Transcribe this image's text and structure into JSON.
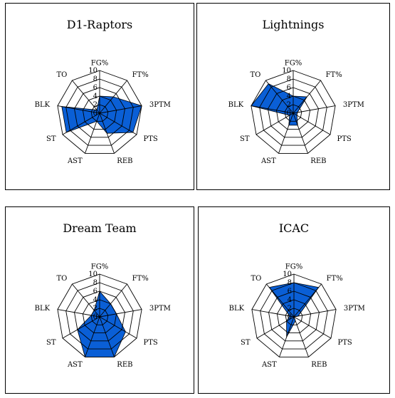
{
  "chart_data": [
    {
      "type": "radar",
      "title": "D1-Raptors",
      "axes": [
        "FG%",
        "FT%",
        "3PTM",
        "PTS",
        "REB",
        "AST",
        "ST",
        "BLK",
        "TO"
      ],
      "ticks": [
        "0",
        "2",
        "4",
        "6",
        "8",
        "10"
      ],
      "rlim": [
        0,
        10
      ],
      "values": [
        4,
        5,
        10,
        9,
        5,
        2,
        9,
        9,
        1
      ],
      "fill_color": "#0a5fd6"
    },
    {
      "type": "radar",
      "title": "Lightnings",
      "axes": [
        "FG%",
        "FT%",
        "3PTM",
        "PTS",
        "REB",
        "AST",
        "ST",
        "BLK",
        "TO"
      ],
      "ticks": [
        "0",
        "2",
        "4",
        "6",
        "8",
        "10"
      ],
      "rlim": [
        0,
        10
      ],
      "values": [
        4,
        5,
        1,
        1,
        3,
        3,
        1,
        10,
        9
      ],
      "fill_color": "#0a5fd6"
    },
    {
      "type": "radar",
      "title": "Dream Team",
      "axes": [
        "FG%",
        "FT%",
        "3PTM",
        "PTS",
        "REB",
        "AST",
        "ST",
        "BLK",
        "TO"
      ],
      "ticks": [
        "0",
        "2",
        "4",
        "6",
        "8",
        "10"
      ],
      "rlim": [
        0,
        10
      ],
      "values": [
        6,
        4,
        4,
        7,
        10,
        10,
        6,
        2,
        2
      ],
      "fill_color": "#0a5fd6"
    },
    {
      "type": "radar",
      "title": "ICAC",
      "axes": [
        "FG%",
        "FT%",
        "3PTM",
        "PTS",
        "REB",
        "AST",
        "ST",
        "BLK",
        "TO"
      ],
      "ticks": [
        "0",
        "2",
        "4",
        "6",
        "8",
        "10"
      ],
      "rlim": [
        0,
        10
      ],
      "values": [
        8,
        9,
        1,
        0,
        1,
        5,
        2,
        1,
        9
      ],
      "fill_color": "#0a5fd6"
    }
  ]
}
